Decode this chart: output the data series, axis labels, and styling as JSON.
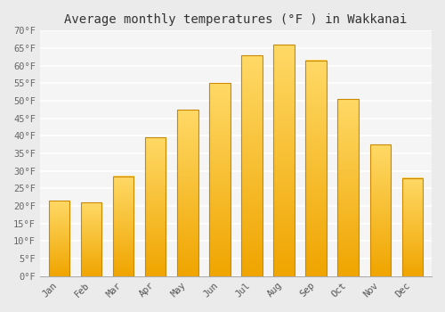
{
  "title": "Average monthly temperatures (°F ) in Wakkanai",
  "months": [
    "Jan",
    "Feb",
    "Mar",
    "Apr",
    "May",
    "Jun",
    "Jul",
    "Aug",
    "Sep",
    "Oct",
    "Nov",
    "Dec"
  ],
  "values": [
    21.5,
    21.0,
    28.5,
    39.5,
    47.5,
    55.0,
    63.0,
    66.0,
    61.5,
    50.5,
    37.5,
    28.0
  ],
  "bar_color_top": "#FFD966",
  "bar_color_bottom": "#F0A500",
  "bar_edge_color": "#CC8800",
  "background_color": "#ebebeb",
  "plot_bg_color": "#f5f5f5",
  "grid_color": "#ffffff",
  "ylim": [
    0,
    70
  ],
  "yticks": [
    0,
    5,
    10,
    15,
    20,
    25,
    30,
    35,
    40,
    45,
    50,
    55,
    60,
    65,
    70
  ],
  "ytick_labels": [
    "0°F",
    "5°F",
    "10°F",
    "15°F",
    "20°F",
    "25°F",
    "30°F",
    "35°F",
    "40°F",
    "45°F",
    "50°F",
    "55°F",
    "60°F",
    "65°F",
    "70°F"
  ],
  "title_fontsize": 10,
  "tick_fontsize": 7.5,
  "tick_font_family": "monospace",
  "bar_width": 0.65
}
